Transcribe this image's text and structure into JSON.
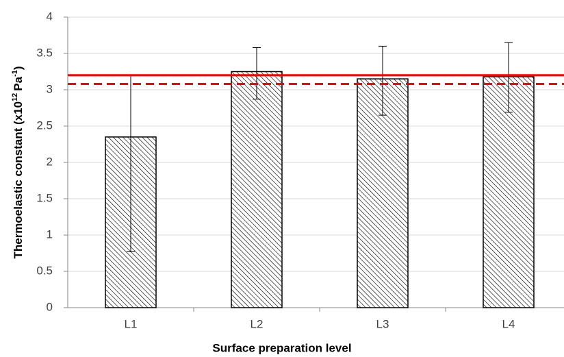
{
  "chart_data": {
    "type": "bar",
    "xlabel": "Surface preparation level",
    "ylabel": {
      "text": "Thermoelastic constant (x10",
      "exp1": "12",
      "unit": "Pa",
      "exp2": "-1",
      "close": ")"
    },
    "categories": [
      "L1",
      "L2",
      "L3",
      "L4"
    ],
    "values": [
      2.35,
      3.25,
      3.15,
      3.18
    ],
    "error_low": [
      1.58,
      0.38,
      0.5,
      0.49
    ],
    "error_high": [
      0.85,
      0.33,
      0.45,
      0.47
    ],
    "color": "#000000",
    "ylim": [
      0,
      4
    ],
    "yticks": [
      0,
      0.5,
      1,
      1.5,
      2,
      2.5,
      3,
      3.5,
      4
    ],
    "grid": true,
    "reference_lines": [
      {
        "value": 3.2,
        "style": "solid",
        "color": "#ff0000"
      },
      {
        "value": 3.08,
        "style": "dashed",
        "color": "#ff0000"
      }
    ]
  }
}
